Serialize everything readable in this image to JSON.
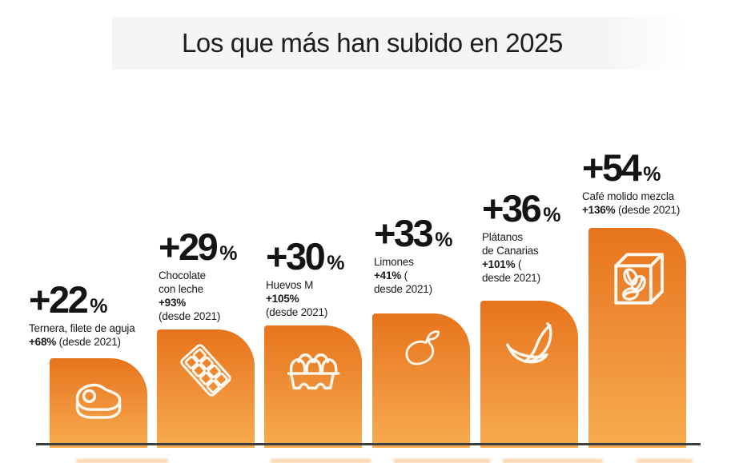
{
  "title": "Los que más han subido en 2025",
  "colors": {
    "bar_gradient_top": "#E7741C",
    "bar_gradient_bottom": "#F8AC4E",
    "baseline": "#3F3F3F",
    "title_band_bg": "#F4F5F7",
    "text": "#1B1B1B",
    "icon_stroke": "#FDF8EF"
  },
  "chart_data": {
    "type": "bar",
    "title": "Los que más han subido en 2025",
    "unit": "%",
    "percent_sign": "%",
    "ylim": [
      0,
      60
    ],
    "grid": false,
    "legend": false,
    "categories": [
      "Ternera, filete de aguja",
      "Chocolate con leche",
      "Huevos M",
      "Limones",
      "Plátanos de Canarias",
      "Café molido mezcla"
    ],
    "values_2025_pct": [
      22,
      29,
      30,
      33,
      36,
      54
    ],
    "values_since_2021_pct": [
      68,
      93,
      105,
      41,
      101,
      136
    ],
    "items": [
      {
        "label": "Ternera, filete de aguja",
        "value": 22,
        "value_text": "+22",
        "since_2021": 68,
        "icon": "steak-icon",
        "lines": [
          [
            {
              "t": "Ternera, filete de aguja",
              "b": false
            }
          ],
          [
            {
              "t": "+68%",
              "b": true
            },
            {
              "t": " (desde 2021)",
              "b": false
            }
          ]
        ]
      },
      {
        "label": "Chocolate con leche",
        "value": 29,
        "value_text": "+29",
        "since_2021": 93,
        "icon": "chocolate-bar-icon",
        "lines": [
          [
            {
              "t": "Chocolate",
              "b": false
            }
          ],
          [
            {
              "t": "con leche",
              "b": false
            }
          ],
          [
            {
              "t": "+93%",
              "b": true
            }
          ],
          [
            {
              "t": "(desde 2021)",
              "b": false
            }
          ]
        ]
      },
      {
        "label": "Huevos M",
        "value": 30,
        "value_text": "+30",
        "since_2021": 105,
        "icon": "egg-carton-icon",
        "lines": [
          [
            {
              "t": "Huevos M",
              "b": false
            }
          ],
          [
            {
              "t": "+105%",
              "b": true
            }
          ],
          [
            {
              "t": "(desde 2021)",
              "b": false
            }
          ]
        ]
      },
      {
        "label": "Limones",
        "value": 33,
        "value_text": "+33",
        "since_2021": 41,
        "icon": "lemon-icon",
        "lines": [
          [
            {
              "t": "Limones",
              "b": false
            }
          ],
          [
            {
              "t": "+41%",
              "b": true
            },
            {
              "t": " (",
              "b": false
            }
          ],
          [
            {
              "t": "desde 2021)",
              "b": false
            }
          ]
        ]
      },
      {
        "label": "Plátanos de Canarias",
        "value": 36,
        "value_text": "+36",
        "since_2021": 101,
        "icon": "bananas-icon",
        "lines": [
          [
            {
              "t": "Plátanos",
              "b": false
            }
          ],
          [
            {
              "t": "de Canarias",
              "b": false
            }
          ],
          [
            {
              "t": "+101%",
              "b": true
            },
            {
              "t": " (",
              "b": false
            }
          ],
          [
            {
              "t": "desde 2021)",
              "b": false
            }
          ]
        ]
      },
      {
        "label": "Café molido mezcla",
        "value": 54,
        "value_text": "+54",
        "since_2021": 136,
        "icon": "coffee-package-icon",
        "lines": [
          [
            {
              "t": "Café molido mezcla",
              "b": false
            }
          ],
          [
            {
              "t": "+136%",
              "b": true
            },
            {
              "t": " (desde 2021)",
              "b": false
            }
          ]
        ]
      }
    ]
  }
}
